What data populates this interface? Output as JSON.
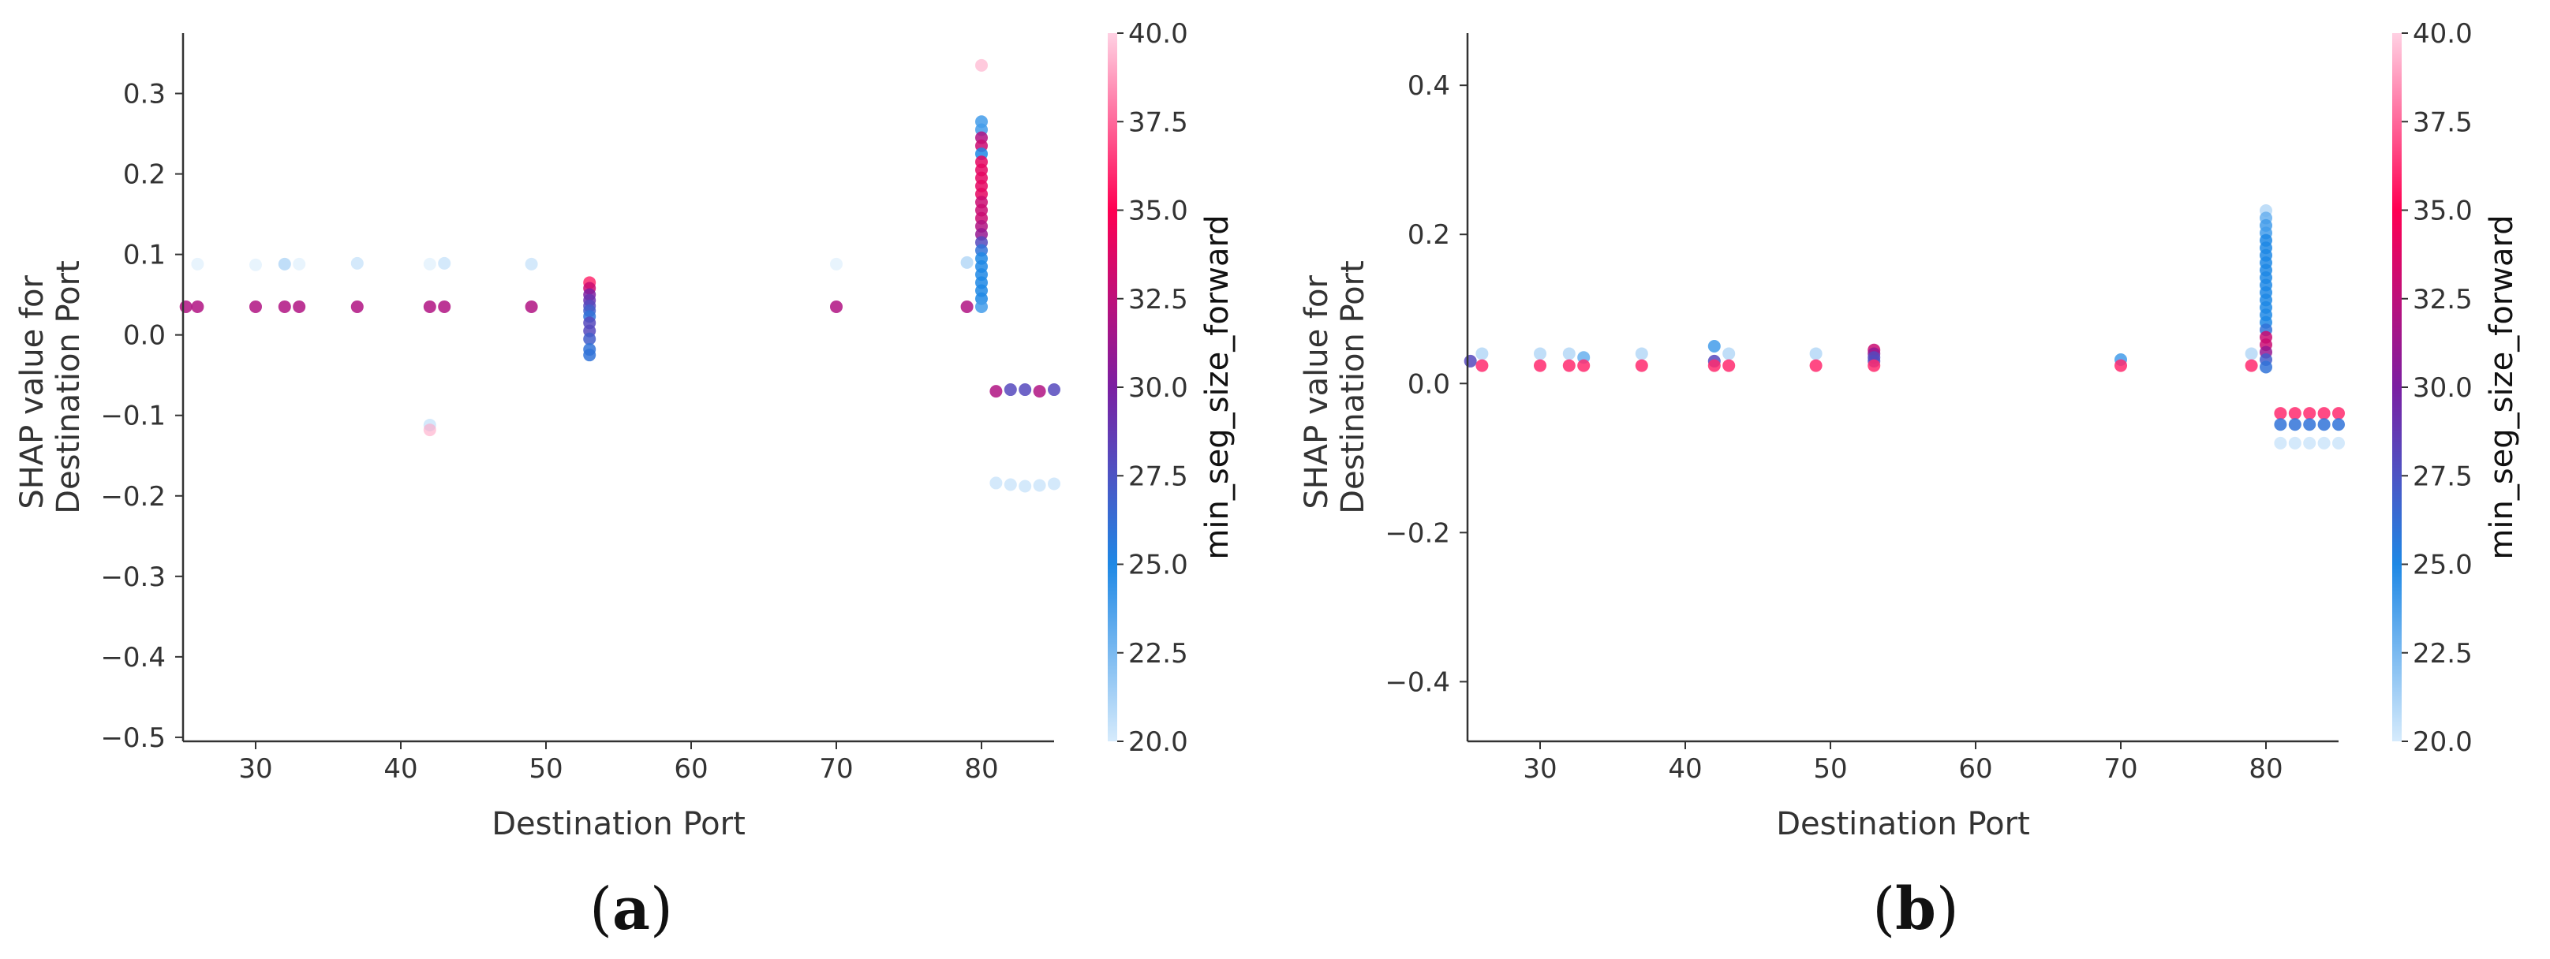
{
  "colors": {
    "low": "#d6ebfc",
    "mid_low": "#1e88e5",
    "mid": "#7b1fa2",
    "high": "#ff0052",
    "top": "#ffd1e3",
    "axis": "#333333"
  },
  "chart_data": [
    {
      "type": "scatter",
      "panel_label": "a",
      "xlabel": "Destination Port",
      "ylabel_lines": [
        "SHAP value for",
        "Destination Port"
      ],
      "xlim": [
        25,
        85
      ],
      "ylim": [
        -0.505,
        0.375
      ],
      "xticks": [
        30,
        40,
        50,
        60,
        70,
        80
      ],
      "xtick_labels": [
        "30",
        "40",
        "50",
        "60",
        "70",
        "80"
      ],
      "yticks": [
        -0.5,
        -0.4,
        -0.3,
        -0.2,
        -0.1,
        0.0,
        0.1,
        0.2,
        0.3
      ],
      "ytick_labels": [
        "−0.5",
        "−0.4",
        "−0.3",
        "−0.2",
        "−0.1",
        "0.0",
        "0.1",
        "0.2",
        "0.3"
      ],
      "colorbar": {
        "label": "min_seg_size_forward",
        "range": [
          20,
          40
        ],
        "ticks": [
          20.0,
          22.5,
          25.0,
          27.5,
          30.0,
          32.5,
          35.0,
          37.5,
          40.0
        ],
        "tick_labels": [
          "20.0",
          "22.5",
          "25.0",
          "27.5",
          "30.0",
          "32.5",
          "35.0",
          "37.5",
          "40.0"
        ]
      },
      "points": [
        {
          "x": 26,
          "y": 0.088,
          "c": 20
        },
        {
          "x": 26,
          "y": 0.035,
          "c": 32
        },
        {
          "x": 25.2,
          "y": 0.035,
          "c": 32
        },
        {
          "x": 30,
          "y": 0.087,
          "c": 20
        },
        {
          "x": 30,
          "y": 0.035,
          "c": 32
        },
        {
          "x": 32,
          "y": 0.088,
          "c": 22
        },
        {
          "x": 32,
          "y": 0.035,
          "c": 32
        },
        {
          "x": 33,
          "y": 0.088,
          "c": 20
        },
        {
          "x": 33,
          "y": 0.035,
          "c": 32
        },
        {
          "x": 37,
          "y": 0.089,
          "c": 21
        },
        {
          "x": 37,
          "y": 0.035,
          "c": 32
        },
        {
          "x": 42,
          "y": 0.088,
          "c": 20
        },
        {
          "x": 42,
          "y": 0.035,
          "c": 32
        },
        {
          "x": 43,
          "y": 0.089,
          "c": 21
        },
        {
          "x": 43,
          "y": 0.035,
          "c": 32
        },
        {
          "x": 42,
          "y": -0.112,
          "c": 21
        },
        {
          "x": 42,
          "y": -0.118,
          "c": 39
        },
        {
          "x": 49,
          "y": 0.088,
          "c": 21
        },
        {
          "x": 49,
          "y": 0.035,
          "c": 32
        },
        {
          "x": 53,
          "y": 0.065,
          "c": 36
        },
        {
          "x": 53,
          "y": 0.058,
          "c": 33
        },
        {
          "x": 53,
          "y": 0.05,
          "c": 30
        },
        {
          "x": 53,
          "y": 0.043,
          "c": 29
        },
        {
          "x": 53,
          "y": 0.036,
          "c": 28
        },
        {
          "x": 53,
          "y": 0.03,
          "c": 27
        },
        {
          "x": 53,
          "y": 0.023,
          "c": 26
        },
        {
          "x": 53,
          "y": 0.015,
          "c": 28
        },
        {
          "x": 53,
          "y": 0.005,
          "c": 28
        },
        {
          "x": 53,
          "y": -0.005,
          "c": 27
        },
        {
          "x": 53,
          "y": -0.018,
          "c": 26
        },
        {
          "x": 53,
          "y": -0.025,
          "c": 26
        },
        {
          "x": 70,
          "y": 0.088,
          "c": 20
        },
        {
          "x": 70,
          "y": 0.035,
          "c": 32
        },
        {
          "x": 79,
          "y": 0.09,
          "c": 22
        },
        {
          "x": 79,
          "y": 0.035,
          "c": 32
        },
        {
          "x": 80,
          "y": 0.335,
          "c": 39
        },
        {
          "x": 80,
          "y": 0.265,
          "c": 24
        },
        {
          "x": 80,
          "y": 0.255,
          "c": 24
        },
        {
          "x": 80,
          "y": 0.245,
          "c": 32
        },
        {
          "x": 80,
          "y": 0.235,
          "c": 33
        },
        {
          "x": 80,
          "y": 0.225,
          "c": 25
        },
        {
          "x": 80,
          "y": 0.215,
          "c": 34
        },
        {
          "x": 80,
          "y": 0.205,
          "c": 34
        },
        {
          "x": 80,
          "y": 0.195,
          "c": 34
        },
        {
          "x": 80,
          "y": 0.185,
          "c": 34
        },
        {
          "x": 80,
          "y": 0.175,
          "c": 34
        },
        {
          "x": 80,
          "y": 0.165,
          "c": 33
        },
        {
          "x": 80,
          "y": 0.155,
          "c": 33
        },
        {
          "x": 80,
          "y": 0.145,
          "c": 33
        },
        {
          "x": 80,
          "y": 0.135,
          "c": 32
        },
        {
          "x": 80,
          "y": 0.125,
          "c": 31
        },
        {
          "x": 80,
          "y": 0.115,
          "c": 28
        },
        {
          "x": 80,
          "y": 0.105,
          "c": 26
        },
        {
          "x": 80,
          "y": 0.095,
          "c": 25
        },
        {
          "x": 80,
          "y": 0.085,
          "c": 25
        },
        {
          "x": 80,
          "y": 0.075,
          "c": 25
        },
        {
          "x": 80,
          "y": 0.065,
          "c": 25
        },
        {
          "x": 80,
          "y": 0.055,
          "c": 25
        },
        {
          "x": 80,
          "y": 0.045,
          "c": 25
        },
        {
          "x": 80,
          "y": 0.035,
          "c": 24
        },
        {
          "x": 81,
          "y": -0.07,
          "c": 32
        },
        {
          "x": 82,
          "y": -0.068,
          "c": 28
        },
        {
          "x": 83,
          "y": -0.068,
          "c": 28
        },
        {
          "x": 84,
          "y": -0.07,
          "c": 32
        },
        {
          "x": 85,
          "y": -0.068,
          "c": 28
        },
        {
          "x": 81,
          "y": -0.184,
          "c": 21
        },
        {
          "x": 82,
          "y": -0.186,
          "c": 21
        },
        {
          "x": 83,
          "y": -0.188,
          "c": 21
        },
        {
          "x": 84,
          "y": -0.187,
          "c": 21
        },
        {
          "x": 85,
          "y": -0.185,
          "c": 21
        }
      ]
    },
    {
      "type": "scatter",
      "panel_label": "b",
      "xlabel": "Destination Port",
      "ylabel_lines": [
        "SHAP value for",
        "Destination Port"
      ],
      "xlim": [
        25,
        85
      ],
      "ylim": [
        -0.48,
        0.47
      ],
      "xticks": [
        30,
        40,
        50,
        60,
        70,
        80
      ],
      "xtick_labels": [
        "30",
        "40",
        "50",
        "60",
        "70",
        "80"
      ],
      "yticks": [
        -0.4,
        -0.2,
        0.0,
        0.2,
        0.4
      ],
      "ytick_labels": [
        "−0.4",
        "−0.2",
        "0.0",
        "0.2",
        "0.4"
      ],
      "colorbar": {
        "label": "min_seg_size_forward",
        "range": [
          20,
          40
        ],
        "ticks": [
          20.0,
          22.5,
          25.0,
          27.5,
          30.0,
          32.5,
          35.0,
          37.5,
          40.0
        ],
        "tick_labels": [
          "20.0",
          "22.5",
          "25.0",
          "27.5",
          "30.0",
          "32.5",
          "35.0",
          "37.5",
          "40.0"
        ]
      },
      "points": [
        {
          "x": 25.2,
          "y": 0.03,
          "c": 28
        },
        {
          "x": 26,
          "y": 0.04,
          "c": 22
        },
        {
          "x": 26,
          "y": 0.024,
          "c": 36
        },
        {
          "x": 30,
          "y": 0.04,
          "c": 22
        },
        {
          "x": 30,
          "y": 0.024,
          "c": 36
        },
        {
          "x": 32,
          "y": 0.04,
          "c": 22
        },
        {
          "x": 32,
          "y": 0.024,
          "c": 36
        },
        {
          "x": 33,
          "y": 0.035,
          "c": 23
        },
        {
          "x": 33,
          "y": 0.024,
          "c": 36
        },
        {
          "x": 37,
          "y": 0.04,
          "c": 22
        },
        {
          "x": 37,
          "y": 0.024,
          "c": 36
        },
        {
          "x": 42,
          "y": 0.05,
          "c": 24
        },
        {
          "x": 42,
          "y": 0.03,
          "c": 28
        },
        {
          "x": 42,
          "y": 0.024,
          "c": 36
        },
        {
          "x": 43,
          "y": 0.04,
          "c": 22
        },
        {
          "x": 43,
          "y": 0.024,
          "c": 36
        },
        {
          "x": 49,
          "y": 0.04,
          "c": 22
        },
        {
          "x": 49,
          "y": 0.024,
          "c": 36
        },
        {
          "x": 53,
          "y": 0.045,
          "c": 33
        },
        {
          "x": 53,
          "y": 0.04,
          "c": 31
        },
        {
          "x": 53,
          "y": 0.035,
          "c": 28
        },
        {
          "x": 53,
          "y": 0.03,
          "c": 28
        },
        {
          "x": 53,
          "y": 0.024,
          "c": 36
        },
        {
          "x": 70,
          "y": 0.032,
          "c": 24
        },
        {
          "x": 70,
          "y": 0.024,
          "c": 36
        },
        {
          "x": 79,
          "y": 0.04,
          "c": 22
        },
        {
          "x": 79,
          "y": 0.024,
          "c": 36
        },
        {
          "x": 80,
          "y": 0.232,
          "c": 22
        },
        {
          "x": 80,
          "y": 0.222,
          "c": 23
        },
        {
          "x": 80,
          "y": 0.212,
          "c": 24
        },
        {
          "x": 80,
          "y": 0.202,
          "c": 24
        },
        {
          "x": 80,
          "y": 0.192,
          "c": 25
        },
        {
          "x": 80,
          "y": 0.182,
          "c": 25
        },
        {
          "x": 80,
          "y": 0.172,
          "c": 25
        },
        {
          "x": 80,
          "y": 0.162,
          "c": 25
        },
        {
          "x": 80,
          "y": 0.152,
          "c": 25
        },
        {
          "x": 80,
          "y": 0.142,
          "c": 25
        },
        {
          "x": 80,
          "y": 0.132,
          "c": 25
        },
        {
          "x": 80,
          "y": 0.122,
          "c": 25
        },
        {
          "x": 80,
          "y": 0.112,
          "c": 25
        },
        {
          "x": 80,
          "y": 0.102,
          "c": 25
        },
        {
          "x": 80,
          "y": 0.092,
          "c": 25
        },
        {
          "x": 80,
          "y": 0.082,
          "c": 25
        },
        {
          "x": 80,
          "y": 0.072,
          "c": 26
        },
        {
          "x": 80,
          "y": 0.062,
          "c": 33
        },
        {
          "x": 80,
          "y": 0.052,
          "c": 33
        },
        {
          "x": 80,
          "y": 0.042,
          "c": 31
        },
        {
          "x": 80,
          "y": 0.032,
          "c": 27
        },
        {
          "x": 80,
          "y": 0.022,
          "c": 26
        },
        {
          "x": 81,
          "y": -0.04,
          "c": 36
        },
        {
          "x": 82,
          "y": -0.04,
          "c": 36
        },
        {
          "x": 83,
          "y": -0.04,
          "c": 36
        },
        {
          "x": 84,
          "y": -0.04,
          "c": 36
        },
        {
          "x": 85,
          "y": -0.04,
          "c": 36
        },
        {
          "x": 81,
          "y": -0.055,
          "c": 26
        },
        {
          "x": 82,
          "y": -0.055,
          "c": 26
        },
        {
          "x": 83,
          "y": -0.055,
          "c": 26
        },
        {
          "x": 84,
          "y": -0.055,
          "c": 26
        },
        {
          "x": 85,
          "y": -0.055,
          "c": 26
        },
        {
          "x": 81,
          "y": -0.08,
          "c": 21
        },
        {
          "x": 82,
          "y": -0.08,
          "c": 21
        },
        {
          "x": 83,
          "y": -0.08,
          "c": 21
        },
        {
          "x": 84,
          "y": -0.08,
          "c": 21
        },
        {
          "x": 85,
          "y": -0.08,
          "c": 21
        }
      ]
    }
  ]
}
